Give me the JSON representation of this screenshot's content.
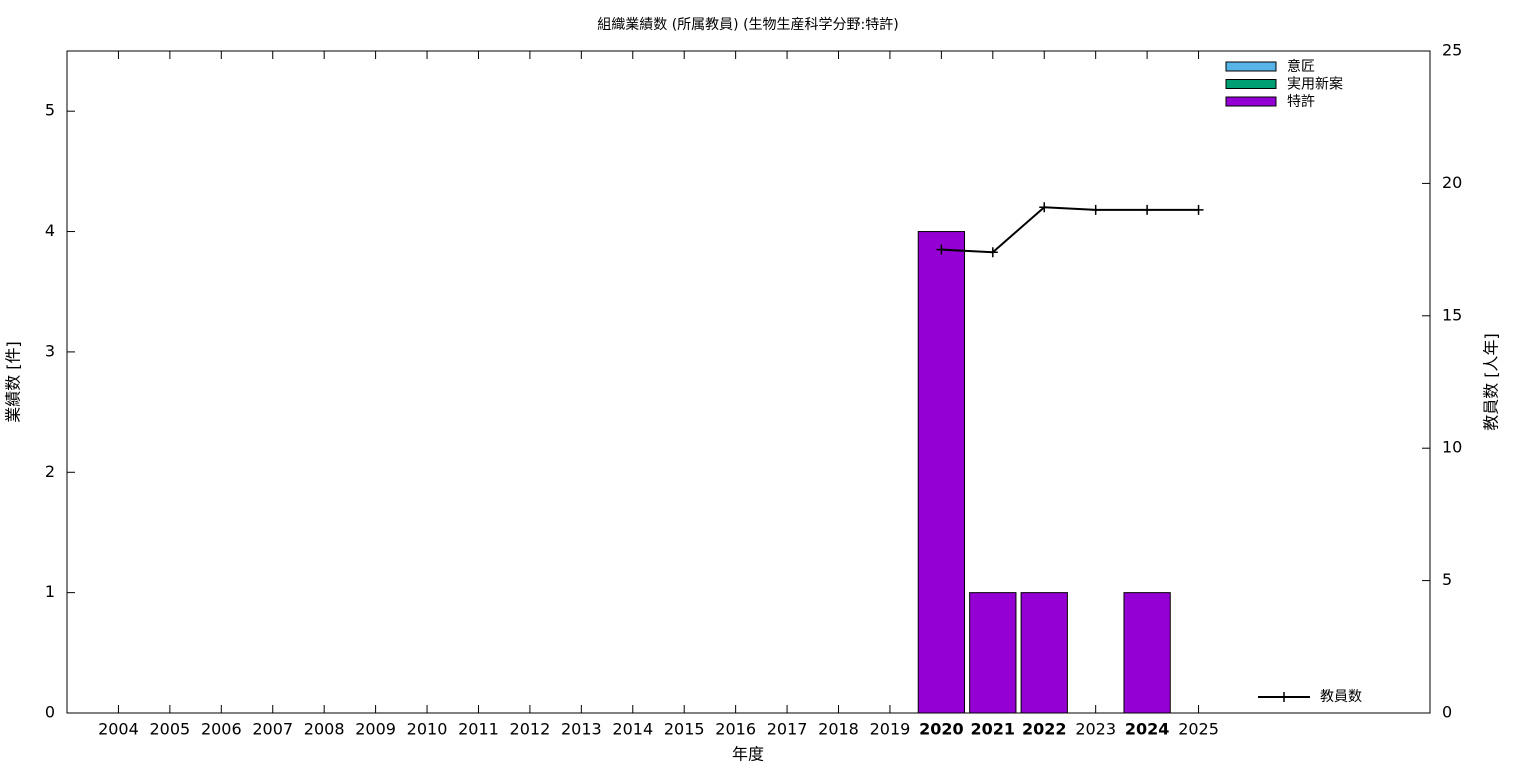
{
  "chart_data": {
    "type": "bar",
    "title": "組織業績数 (所属教員) (生物生産科学分野:特許)",
    "x_label": "年度",
    "y_label": "業績数 [件]",
    "y2_label": "教員数 [人年]",
    "x": [
      2004,
      2005,
      2006,
      2007,
      2008,
      2009,
      2010,
      2011,
      2012,
      2013,
      2014,
      2015,
      2016,
      2017,
      2018,
      2019,
      2020,
      2021,
      2022,
      2023,
      2024,
      2025
    ],
    "xlim": [
      2003,
      2029.5
    ],
    "ylim": [
      0,
      5.5
    ],
    "yticks": [
      0,
      1,
      2,
      3,
      4,
      5
    ],
    "y2lim": [
      0,
      25
    ],
    "y2ticks": [
      0,
      5,
      10,
      15,
      20,
      25
    ],
    "stacked": true,
    "series": [
      {
        "name": "意匠",
        "color": "#56b4e9",
        "values": [
          0,
          0,
          0,
          0,
          0,
          0,
          0,
          0,
          0,
          0,
          0,
          0,
          0,
          0,
          0,
          0,
          0,
          0,
          0,
          0,
          0,
          0
        ]
      },
      {
        "name": "実用新案",
        "color": "#009e73",
        "values": [
          0,
          0,
          0,
          0,
          0,
          0,
          0,
          0,
          0,
          0,
          0,
          0,
          0,
          0,
          0,
          0,
          0,
          0,
          0,
          0,
          0,
          0
        ]
      },
      {
        "name": "特許",
        "color": "#9400d3",
        "values": [
          0,
          0,
          0,
          0,
          0,
          0,
          0,
          0,
          0,
          0,
          0,
          0,
          0,
          0,
          0,
          0,
          4,
          1,
          1,
          0,
          1,
          0
        ]
      },
      {
        "name": "教員数",
        "type": "line",
        "axis": "y2",
        "color": "#000000",
        "values": [
          null,
          null,
          null,
          null,
          null,
          null,
          null,
          null,
          null,
          null,
          null,
          null,
          null,
          null,
          null,
          null,
          17.5,
          17.4,
          19.1,
          19.0,
          19.0,
          19.0
        ]
      }
    ]
  }
}
